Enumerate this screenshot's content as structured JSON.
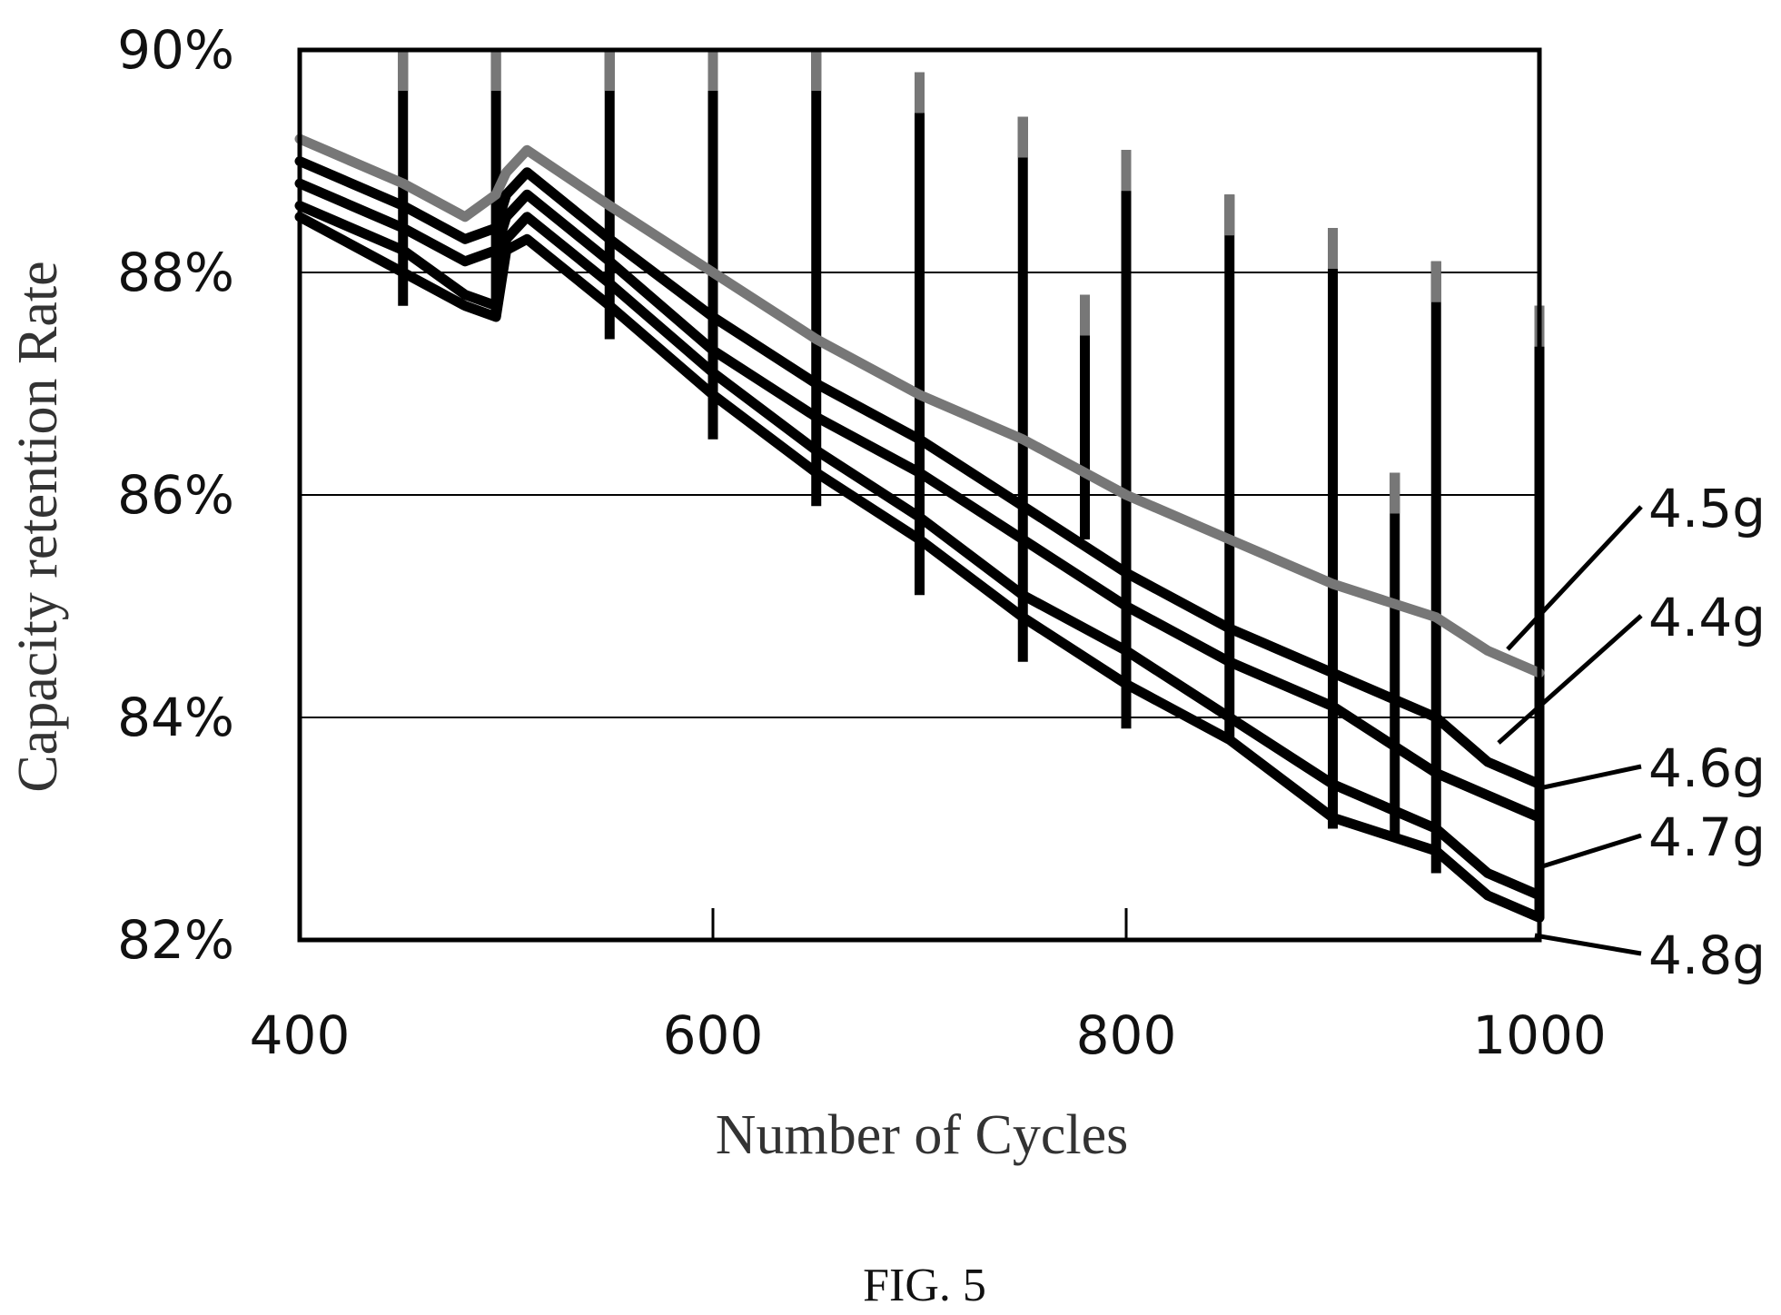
{
  "figure": {
    "caption": "FIG. 5"
  },
  "chart_data": {
    "type": "line",
    "title": "",
    "xlabel": "Number of Cycles",
    "ylabel": "Capacity retention Rate",
    "xlim": [
      400,
      1000
    ],
    "ylim": [
      82,
      90
    ],
    "x_ticks": [
      400,
      600,
      800,
      1000
    ],
    "x_tick_labels": [
      "400",
      "600",
      "800",
      "1000"
    ],
    "y_ticks": [
      82,
      84,
      86,
      88,
      90
    ],
    "y_tick_labels": [
      "82%",
      "84%",
      "86%",
      "88%",
      "90%"
    ],
    "y_gridlines": [
      84,
      86,
      88
    ],
    "x_minor_ticks": [
      600,
      800
    ],
    "legend_placement": "right, labels with leader lines",
    "series_colors": {
      "4.5g": "#777777",
      "4.4g": "#000000",
      "4.6g": "#000000",
      "4.7g": "#000000",
      "4.8g": "#000000"
    },
    "series": [
      {
        "name": "4.5g",
        "x": [
          400,
          450,
          480,
          495,
          500,
          510,
          550,
          600,
          650,
          700,
          750,
          800,
          850,
          900,
          950,
          975,
          1000
        ],
        "y": [
          89.2,
          88.8,
          88.5,
          88.7,
          88.9,
          89.1,
          88.6,
          88.0,
          87.4,
          86.9,
          86.5,
          86.0,
          85.6,
          85.2,
          84.9,
          84.6,
          84.4
        ]
      },
      {
        "name": "4.4g",
        "x": [
          400,
          450,
          480,
          495,
          500,
          510,
          550,
          600,
          650,
          700,
          750,
          800,
          850,
          900,
          950,
          975,
          1000
        ],
        "y": [
          89.0,
          88.6,
          88.3,
          88.4,
          88.7,
          88.9,
          88.3,
          87.6,
          87.0,
          86.5,
          85.9,
          85.3,
          84.8,
          84.4,
          84.0,
          83.6,
          83.4
        ]
      },
      {
        "name": "4.6g",
        "x": [
          400,
          450,
          480,
          495,
          500,
          510,
          550,
          600,
          650,
          700,
          750,
          800,
          850,
          900,
          950,
          975,
          1000
        ],
        "y": [
          88.8,
          88.4,
          88.1,
          88.2,
          88.5,
          88.7,
          88.1,
          87.3,
          86.7,
          86.2,
          85.6,
          85.0,
          84.5,
          84.1,
          83.5,
          83.3,
          83.1
        ]
      },
      {
        "name": "4.7g",
        "x": [
          400,
          450,
          480,
          495,
          500,
          510,
          550,
          600,
          650,
          700,
          750,
          800,
          850,
          900,
          950,
          975,
          1000
        ],
        "y": [
          88.6,
          88.2,
          87.8,
          87.7,
          88.3,
          88.5,
          87.9,
          87.1,
          86.4,
          85.8,
          85.1,
          84.6,
          84.0,
          83.4,
          83.0,
          82.6,
          82.4
        ]
      },
      {
        "name": "4.8g",
        "x": [
          400,
          450,
          480,
          495,
          500,
          510,
          550,
          600,
          650,
          700,
          750,
          800,
          850,
          900,
          950,
          975,
          1000
        ],
        "y": [
          88.5,
          88.0,
          87.7,
          87.6,
          88.2,
          88.3,
          87.7,
          86.9,
          86.2,
          85.6,
          84.9,
          84.3,
          83.8,
          83.1,
          82.8,
          82.4,
          82.2
        ]
      }
    ],
    "spikes": [
      {
        "x": 450,
        "y_top": 90.0,
        "y_bottom": 87.7
      },
      {
        "x": 495,
        "y_top": 90.0,
        "y_bottom": 87.6
      },
      {
        "x": 550,
        "y_top": 90.0,
        "y_bottom": 87.4
      },
      {
        "x": 600,
        "y_top": 90.0,
        "y_bottom": 86.5
      },
      {
        "x": 650,
        "y_top": 90.0,
        "y_bottom": 85.9
      },
      {
        "x": 700,
        "y_top": 89.8,
        "y_bottom": 85.1
      },
      {
        "x": 750,
        "y_top": 89.4,
        "y_bottom": 84.5
      },
      {
        "x": 780,
        "y_top": 87.8,
        "y_bottom": 85.6
      },
      {
        "x": 800,
        "y_top": 89.1,
        "y_bottom": 83.9
      },
      {
        "x": 850,
        "y_top": 88.7,
        "y_bottom": 83.8
      },
      {
        "x": 900,
        "y_top": 88.4,
        "y_bottom": 83.0
      },
      {
        "x": 930,
        "y_top": 86.2,
        "y_bottom": 82.9
      },
      {
        "x": 950,
        "y_top": 88.1,
        "y_bottom": 82.6
      },
      {
        "x": 1000,
        "y_top": 87.7,
        "y_bottom": 82.2
      }
    ]
  }
}
